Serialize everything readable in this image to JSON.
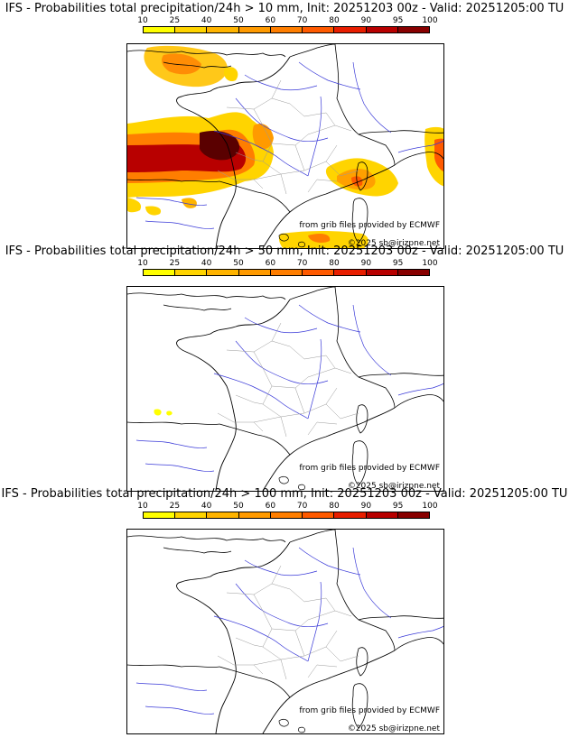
{
  "colorbar": {
    "ticks": [
      "10",
      "25",
      "40",
      "50",
      "60",
      "70",
      "80",
      "90",
      "95",
      "100"
    ],
    "colors": [
      "#ffff00",
      "#ffd400",
      "#ffb400",
      "#ff9a00",
      "#ff7e00",
      "#ff5a00",
      "#e81e00",
      "#b80000",
      "#880000",
      "#5a0000"
    ]
  },
  "panels": [
    {
      "title": "IFS - Probabilities total precipitation/24h > 10 mm, Init: 20251203 00z - Valid: 20251205:00 TU",
      "credit_source": "from grib files provided by ECMWF",
      "credit_copyright": "©2025 sb@irizpne.net"
    },
    {
      "title": "IFS - Probabilities total precipitation/24h > 50 mm, Init: 20251203 00z - Valid: 20251205:00 TU",
      "credit_source": "from grib files provided by ECMWF",
      "credit_copyright": "©2025 sb@irizpne.net"
    },
    {
      "title": "IFS - Probabilities total precipitation/24h > 100 mm, Init: 20251203 00z - Valid: 20251205:00 TU",
      "credit_source": "from grib files provided by ECMWF",
      "credit_copyright": "©2025 sb@irizpne.net"
    }
  ]
}
